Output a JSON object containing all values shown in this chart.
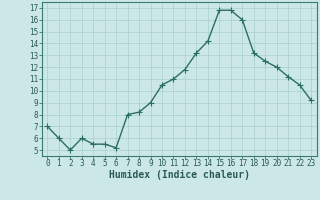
{
  "x": [
    0,
    1,
    2,
    3,
    4,
    5,
    6,
    7,
    8,
    9,
    10,
    11,
    12,
    13,
    14,
    15,
    16,
    17,
    18,
    19,
    20,
    21,
    22,
    23
  ],
  "y": [
    7.0,
    6.0,
    5.0,
    6.0,
    5.5,
    5.5,
    5.2,
    8.0,
    8.2,
    9.0,
    10.5,
    11.0,
    11.8,
    13.2,
    14.2,
    16.8,
    16.8,
    16.0,
    13.2,
    12.5,
    12.0,
    11.2,
    10.5,
    9.2
  ],
  "line_color": "#2a6e65",
  "marker": "o",
  "marker_size": 2.0,
  "linewidth": 1.0,
  "bg_color": "#cce8e6",
  "grid_color": "#a8cece",
  "xlabel": "Humidex (Indice chaleur)",
  "xlim": [
    -0.5,
    23.5
  ],
  "ylim": [
    4.5,
    17.5
  ],
  "yticks": [
    5,
    6,
    7,
    8,
    9,
    10,
    11,
    12,
    13,
    14,
    15,
    16,
    17
  ],
  "xticks": [
    0,
    1,
    2,
    3,
    4,
    5,
    6,
    7,
    8,
    9,
    10,
    11,
    12,
    13,
    14,
    15,
    16,
    17,
    18,
    19,
    20,
    21,
    22,
    23
  ],
  "tick_fontsize": 5.5,
  "label_fontsize": 7,
  "axis_color": "#2a5a55",
  "spine_color": "#3a7a75"
}
